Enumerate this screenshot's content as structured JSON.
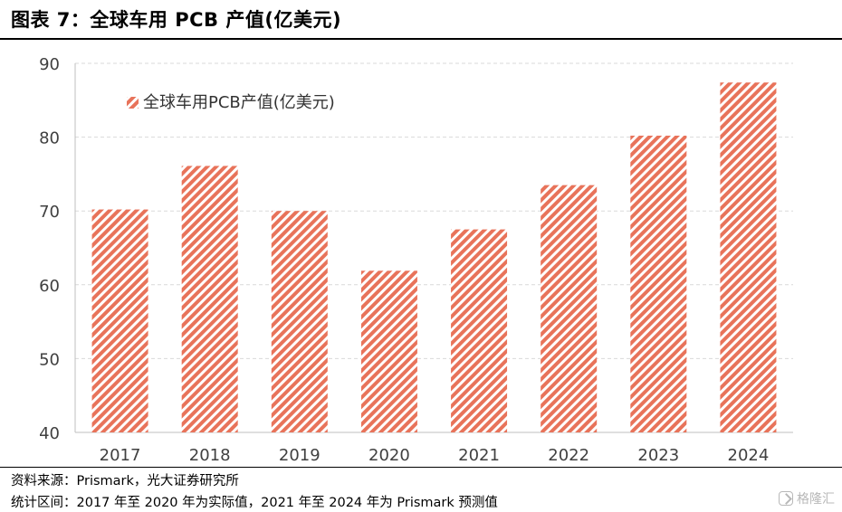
{
  "figure_title": "图表 7：全球车用 PCB 产值(亿美元)",
  "chart_data": {
    "type": "bar",
    "categories": [
      "2017",
      "2018",
      "2019",
      "2020",
      "2021",
      "2022",
      "2023",
      "2024"
    ],
    "series": [
      {
        "name": "全球车用PCB产值(亿美元)",
        "values": [
          70.2,
          76.1,
          70.0,
          61.9,
          67.5,
          73.5,
          80.2,
          87.4
        ]
      }
    ],
    "ylim": [
      40,
      90
    ],
    "yticks": [
      "40",
      "50",
      "60",
      "70",
      "80",
      "90"
    ],
    "grid": true,
    "legend_position": "top-left",
    "bar_color": "#e8735a",
    "bar_pattern": "diagonal-stripes"
  },
  "notes": {
    "source": "资料来源：Prismark，光大证券研究所",
    "period": "统计区间：2017 年至 2020 年为实际值，2021 年至 2024 年为 Prismark 预测值"
  },
  "watermark": {
    "icon": "watermark-logo-icon",
    "text": "格隆汇"
  }
}
